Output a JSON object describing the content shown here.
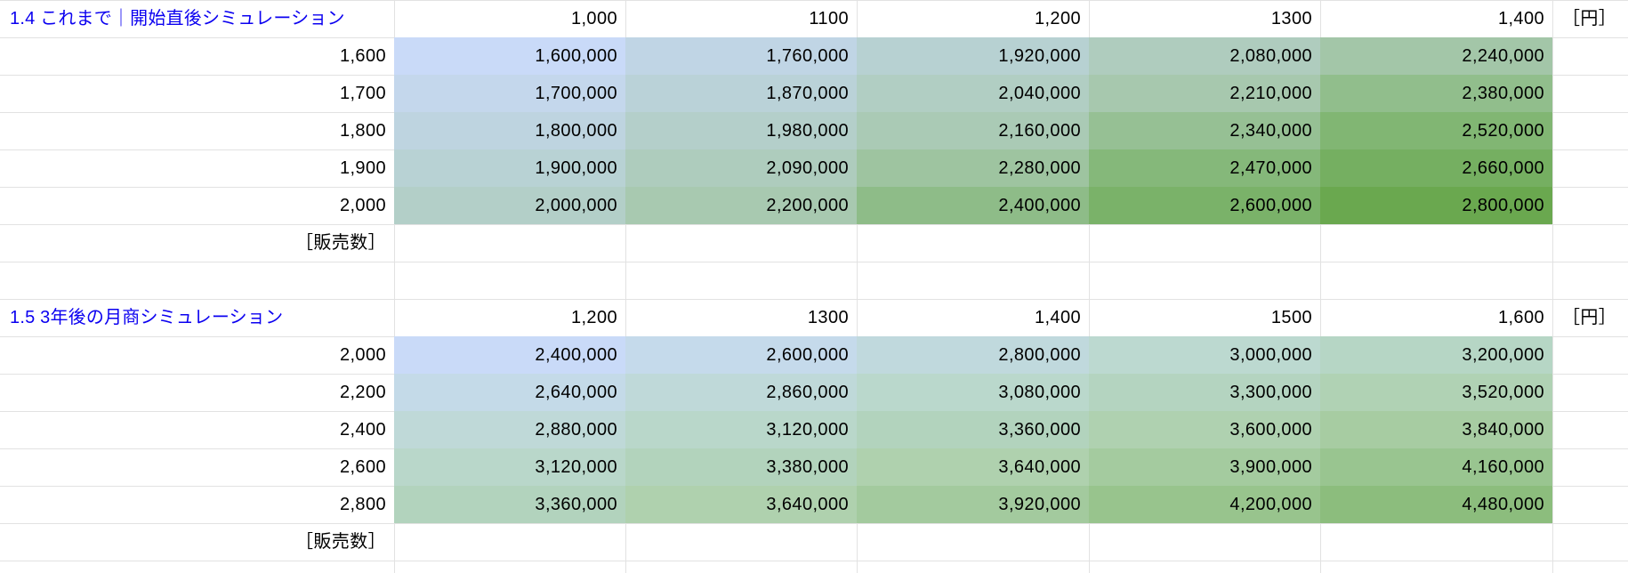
{
  "app": "spreadsheet",
  "colors": {
    "background": "#ffffff",
    "gridline": "#e2e2e2",
    "text": "#000000",
    "title_text": "#0b00f0",
    "scale_min": "#c9daf8",
    "scale_max": "#6aa84f"
  },
  "tables": [
    {
      "title": "1.4 これまで｜開始直後シミュレーション",
      "unit_label": "［円］",
      "footer_label": "［販売数］",
      "price_headers": [
        "1,000",
        "1100",
        "1,200",
        "1300",
        "1,400"
      ],
      "rows": [
        {
          "quantity": "1,600",
          "cells": [
            {
              "value": "1,600,000",
              "bg": "#c9daf8"
            },
            {
              "value": "1,760,000",
              "bg": "#c0d5e5"
            },
            {
              "value": "1,920,000",
              "bg": "#b7d1d2"
            },
            {
              "value": "2,080,000",
              "bg": "#afccbe"
            },
            {
              "value": "2,240,000",
              "bg": "#a3c6a8"
            }
          ]
        },
        {
          "quantity": "1,700",
          "cells": [
            {
              "value": "1,700,000",
              "bg": "#c4d7ec"
            },
            {
              "value": "1,870,000",
              "bg": "#bad2d8"
            },
            {
              "value": "2,040,000",
              "bg": "#b1cec3"
            },
            {
              "value": "2,210,000",
              "bg": "#a7c8ae"
            },
            {
              "value": "2,380,000",
              "bg": "#91be8c"
            }
          ]
        },
        {
          "quantity": "1,800",
          "cells": [
            {
              "value": "1,800,000",
              "bg": "#bed4e0"
            },
            {
              "value": "1,980,000",
              "bg": "#b4cfca"
            },
            {
              "value": "2,160,000",
              "bg": "#aacab5"
            },
            {
              "value": "2,340,000",
              "bg": "#96c094"
            },
            {
              "value": "2,520,000",
              "bg": "#81b673"
            }
          ]
        },
        {
          "quantity": "1,900",
          "cells": [
            {
              "value": "1,900,000",
              "bg": "#b8d2d4"
            },
            {
              "value": "2,090,000",
              "bg": "#aeccbd"
            },
            {
              "value": "2,280,000",
              "bg": "#9ec4a0"
            },
            {
              "value": "2,470,000",
              "bg": "#85b87a"
            },
            {
              "value": "2,660,000",
              "bg": "#75af61"
            }
          ]
        },
        {
          "quantity": "2,000",
          "cells": [
            {
              "value": "2,000,000",
              "bg": "#b3cfc8"
            },
            {
              "value": "2,200,000",
              "bg": "#a8c9b0"
            },
            {
              "value": "2,400,000",
              "bg": "#8ebc88"
            },
            {
              "value": "2,600,000",
              "bg": "#7ab269"
            },
            {
              "value": "2,800,000",
              "bg": "#6aa84f"
            }
          ]
        }
      ]
    },
    {
      "title": "1.5 3年後の月商シミュレーション",
      "unit_label": "［円］",
      "footer_label": "［販売数］",
      "price_headers": [
        "1,200",
        "1300",
        "1,400",
        "1500",
        "1,600"
      ],
      "rows": [
        {
          "quantity": "2,000",
          "cells": [
            {
              "value": "2,400,000",
              "bg": "#c9daf8"
            },
            {
              "value": "2,600,000",
              "bg": "#c5daeb"
            },
            {
              "value": "2,800,000",
              "bg": "#c0d9dd"
            },
            {
              "value": "3,000,000",
              "bg": "#bcd9d0"
            },
            {
              "value": "3,200,000",
              "bg": "#b6d6c5"
            }
          ]
        },
        {
          "quantity": "2,200",
          "cells": [
            {
              "value": "2,640,000",
              "bg": "#c4dae8"
            },
            {
              "value": "2,860,000",
              "bg": "#bfd9d9"
            },
            {
              "value": "3,080,000",
              "bg": "#bad8cc"
            },
            {
              "value": "3,300,000",
              "bg": "#b4d4c0"
            },
            {
              "value": "3,520,000",
              "bg": "#b0d2b4"
            }
          ]
        },
        {
          "quantity": "2,400",
          "cells": [
            {
              "value": "2,880,000",
              "bg": "#bfd9d8"
            },
            {
              "value": "3,120,000",
              "bg": "#b9d7ca"
            },
            {
              "value": "3,360,000",
              "bg": "#b2d3bd"
            },
            {
              "value": "3,600,000",
              "bg": "#afd1b0"
            },
            {
              "value": "3,840,000",
              "bg": "#a7cca2"
            }
          ]
        },
        {
          "quantity": "2,600",
          "cells": [
            {
              "value": "3,120,000",
              "bg": "#b9d7ca"
            },
            {
              "value": "3,380,000",
              "bg": "#b2d3bc"
            },
            {
              "value": "3,640,000",
              "bg": "#afd1ae"
            },
            {
              "value": "3,900,000",
              "bg": "#a4cb9f"
            },
            {
              "value": "4,160,000",
              "bg": "#99c590"
            }
          ]
        },
        {
          "quantity": "2,800",
          "cells": [
            {
              "value": "3,360,000",
              "bg": "#b2d3bd"
            },
            {
              "value": "3,640,000",
              "bg": "#afd1ae"
            },
            {
              "value": "3,920,000",
              "bg": "#a3ca9e"
            },
            {
              "value": "4,200,000",
              "bg": "#98c48d"
            },
            {
              "value": "4,480,000",
              "bg": "#8cbd7d"
            }
          ]
        }
      ]
    }
  ]
}
